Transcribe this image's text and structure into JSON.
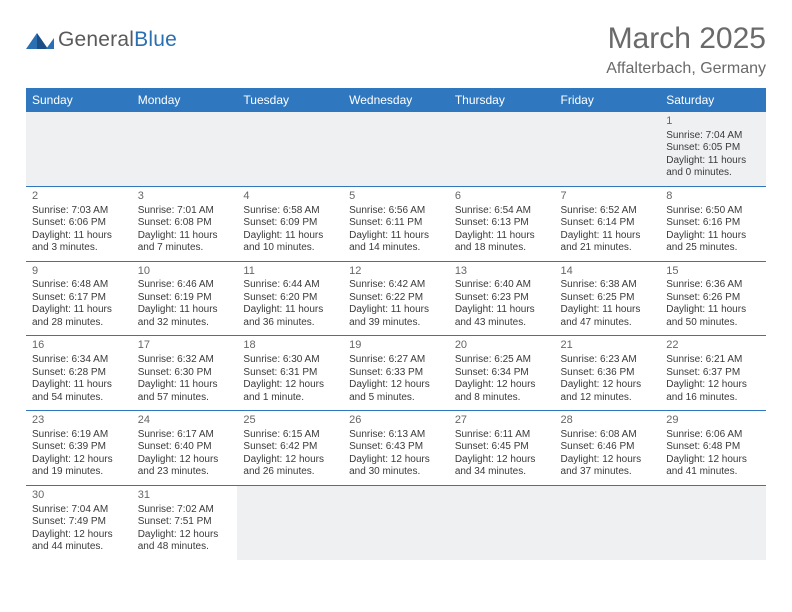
{
  "logo": {
    "general": "General",
    "blue": "Blue"
  },
  "title": {
    "month": "March 2025",
    "location": "Affalterbach, Germany"
  },
  "header_bg": "#2f78c0",
  "columns": [
    "Sunday",
    "Monday",
    "Tuesday",
    "Wednesday",
    "Thursday",
    "Friday",
    "Saturday"
  ],
  "weeks": [
    [
      null,
      null,
      null,
      null,
      null,
      null,
      {
        "n": "1",
        "sr": "Sunrise: 7:04 AM",
        "ss": "Sunset: 6:05 PM",
        "dl1": "Daylight: 11 hours",
        "dl2": "and 0 minutes."
      }
    ],
    [
      {
        "n": "2",
        "sr": "Sunrise: 7:03 AM",
        "ss": "Sunset: 6:06 PM",
        "dl1": "Daylight: 11 hours",
        "dl2": "and 3 minutes."
      },
      {
        "n": "3",
        "sr": "Sunrise: 7:01 AM",
        "ss": "Sunset: 6:08 PM",
        "dl1": "Daylight: 11 hours",
        "dl2": "and 7 minutes."
      },
      {
        "n": "4",
        "sr": "Sunrise: 6:58 AM",
        "ss": "Sunset: 6:09 PM",
        "dl1": "Daylight: 11 hours",
        "dl2": "and 10 minutes."
      },
      {
        "n": "5",
        "sr": "Sunrise: 6:56 AM",
        "ss": "Sunset: 6:11 PM",
        "dl1": "Daylight: 11 hours",
        "dl2": "and 14 minutes."
      },
      {
        "n": "6",
        "sr": "Sunrise: 6:54 AM",
        "ss": "Sunset: 6:13 PM",
        "dl1": "Daylight: 11 hours",
        "dl2": "and 18 minutes."
      },
      {
        "n": "7",
        "sr": "Sunrise: 6:52 AM",
        "ss": "Sunset: 6:14 PM",
        "dl1": "Daylight: 11 hours",
        "dl2": "and 21 minutes."
      },
      {
        "n": "8",
        "sr": "Sunrise: 6:50 AM",
        "ss": "Sunset: 6:16 PM",
        "dl1": "Daylight: 11 hours",
        "dl2": "and 25 minutes."
      }
    ],
    [
      {
        "n": "9",
        "sr": "Sunrise: 6:48 AM",
        "ss": "Sunset: 6:17 PM",
        "dl1": "Daylight: 11 hours",
        "dl2": "and 28 minutes."
      },
      {
        "n": "10",
        "sr": "Sunrise: 6:46 AM",
        "ss": "Sunset: 6:19 PM",
        "dl1": "Daylight: 11 hours",
        "dl2": "and 32 minutes."
      },
      {
        "n": "11",
        "sr": "Sunrise: 6:44 AM",
        "ss": "Sunset: 6:20 PM",
        "dl1": "Daylight: 11 hours",
        "dl2": "and 36 minutes."
      },
      {
        "n": "12",
        "sr": "Sunrise: 6:42 AM",
        "ss": "Sunset: 6:22 PM",
        "dl1": "Daylight: 11 hours",
        "dl2": "and 39 minutes."
      },
      {
        "n": "13",
        "sr": "Sunrise: 6:40 AM",
        "ss": "Sunset: 6:23 PM",
        "dl1": "Daylight: 11 hours",
        "dl2": "and 43 minutes."
      },
      {
        "n": "14",
        "sr": "Sunrise: 6:38 AM",
        "ss": "Sunset: 6:25 PM",
        "dl1": "Daylight: 11 hours",
        "dl2": "and 47 minutes."
      },
      {
        "n": "15",
        "sr": "Sunrise: 6:36 AM",
        "ss": "Sunset: 6:26 PM",
        "dl1": "Daylight: 11 hours",
        "dl2": "and 50 minutes."
      }
    ],
    [
      {
        "n": "16",
        "sr": "Sunrise: 6:34 AM",
        "ss": "Sunset: 6:28 PM",
        "dl1": "Daylight: 11 hours",
        "dl2": "and 54 minutes."
      },
      {
        "n": "17",
        "sr": "Sunrise: 6:32 AM",
        "ss": "Sunset: 6:30 PM",
        "dl1": "Daylight: 11 hours",
        "dl2": "and 57 minutes."
      },
      {
        "n": "18",
        "sr": "Sunrise: 6:30 AM",
        "ss": "Sunset: 6:31 PM",
        "dl1": "Daylight: 12 hours",
        "dl2": "and 1 minute."
      },
      {
        "n": "19",
        "sr": "Sunrise: 6:27 AM",
        "ss": "Sunset: 6:33 PM",
        "dl1": "Daylight: 12 hours",
        "dl2": "and 5 minutes."
      },
      {
        "n": "20",
        "sr": "Sunrise: 6:25 AM",
        "ss": "Sunset: 6:34 PM",
        "dl1": "Daylight: 12 hours",
        "dl2": "and 8 minutes."
      },
      {
        "n": "21",
        "sr": "Sunrise: 6:23 AM",
        "ss": "Sunset: 6:36 PM",
        "dl1": "Daylight: 12 hours",
        "dl2": "and 12 minutes."
      },
      {
        "n": "22",
        "sr": "Sunrise: 6:21 AM",
        "ss": "Sunset: 6:37 PM",
        "dl1": "Daylight: 12 hours",
        "dl2": "and 16 minutes."
      }
    ],
    [
      {
        "n": "23",
        "sr": "Sunrise: 6:19 AM",
        "ss": "Sunset: 6:39 PM",
        "dl1": "Daylight: 12 hours",
        "dl2": "and 19 minutes."
      },
      {
        "n": "24",
        "sr": "Sunrise: 6:17 AM",
        "ss": "Sunset: 6:40 PM",
        "dl1": "Daylight: 12 hours",
        "dl2": "and 23 minutes."
      },
      {
        "n": "25",
        "sr": "Sunrise: 6:15 AM",
        "ss": "Sunset: 6:42 PM",
        "dl1": "Daylight: 12 hours",
        "dl2": "and 26 minutes."
      },
      {
        "n": "26",
        "sr": "Sunrise: 6:13 AM",
        "ss": "Sunset: 6:43 PM",
        "dl1": "Daylight: 12 hours",
        "dl2": "and 30 minutes."
      },
      {
        "n": "27",
        "sr": "Sunrise: 6:11 AM",
        "ss": "Sunset: 6:45 PM",
        "dl1": "Daylight: 12 hours",
        "dl2": "and 34 minutes."
      },
      {
        "n": "28",
        "sr": "Sunrise: 6:08 AM",
        "ss": "Sunset: 6:46 PM",
        "dl1": "Daylight: 12 hours",
        "dl2": "and 37 minutes."
      },
      {
        "n": "29",
        "sr": "Sunrise: 6:06 AM",
        "ss": "Sunset: 6:48 PM",
        "dl1": "Daylight: 12 hours",
        "dl2": "and 41 minutes."
      }
    ],
    [
      {
        "n": "30",
        "sr": "Sunrise: 7:04 AM",
        "ss": "Sunset: 7:49 PM",
        "dl1": "Daylight: 12 hours",
        "dl2": "and 44 minutes."
      },
      {
        "n": "31",
        "sr": "Sunrise: 7:02 AM",
        "ss": "Sunset: 7:51 PM",
        "dl1": "Daylight: 12 hours",
        "dl2": "and 48 minutes."
      },
      null,
      null,
      null,
      null,
      null
    ]
  ]
}
